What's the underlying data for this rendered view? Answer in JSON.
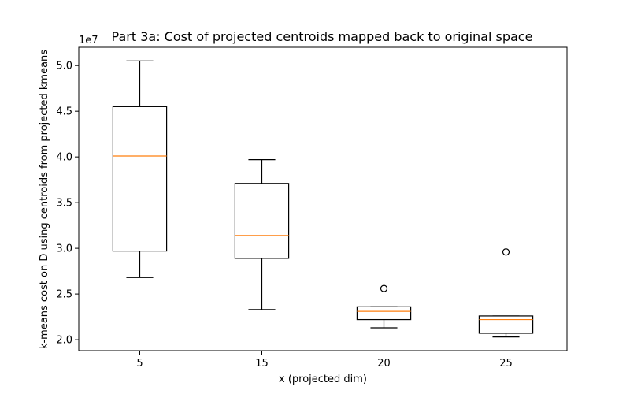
{
  "chart_data": {
    "type": "box",
    "title": "Part 3a: Cost of projected centroids mapped back to original space",
    "xlabel": "x (projected dim)",
    "ylabel": "k-means cost on D using centroids from projected kmeans",
    "y_offset_label": "1e7",
    "y_scale": 10000000,
    "ylim": [
      1.88,
      5.2
    ],
    "yticks": [
      2.0,
      2.5,
      3.0,
      3.5,
      4.0,
      4.5,
      5.0
    ],
    "ytick_labels": [
      "2.0",
      "2.5",
      "3.0",
      "3.5",
      "4.0",
      "4.5",
      "5.0"
    ],
    "grid": false,
    "categories": [
      "5",
      "15",
      "20",
      "25"
    ],
    "boxes": [
      {
        "category": "5",
        "whisker_low": 2.68,
        "q1": 2.97,
        "median": 4.01,
        "q3": 4.55,
        "whisker_high": 5.05,
        "outliers": []
      },
      {
        "category": "15",
        "whisker_low": 2.33,
        "q1": 2.89,
        "median": 3.14,
        "q3": 3.71,
        "whisker_high": 3.97,
        "outliers": []
      },
      {
        "category": "20",
        "whisker_low": 2.13,
        "q1": 2.22,
        "median": 2.31,
        "q3": 2.36,
        "whisker_high": 2.36,
        "outliers": [
          2.56
        ]
      },
      {
        "category": "25",
        "whisker_low": 2.03,
        "q1": 2.07,
        "median": 2.22,
        "q3": 2.26,
        "whisker_high": 2.26,
        "outliers": [
          2.96
        ]
      }
    ],
    "colors": {
      "box": "#000000",
      "median": "#ff7f0e",
      "axes": "#000000"
    }
  }
}
